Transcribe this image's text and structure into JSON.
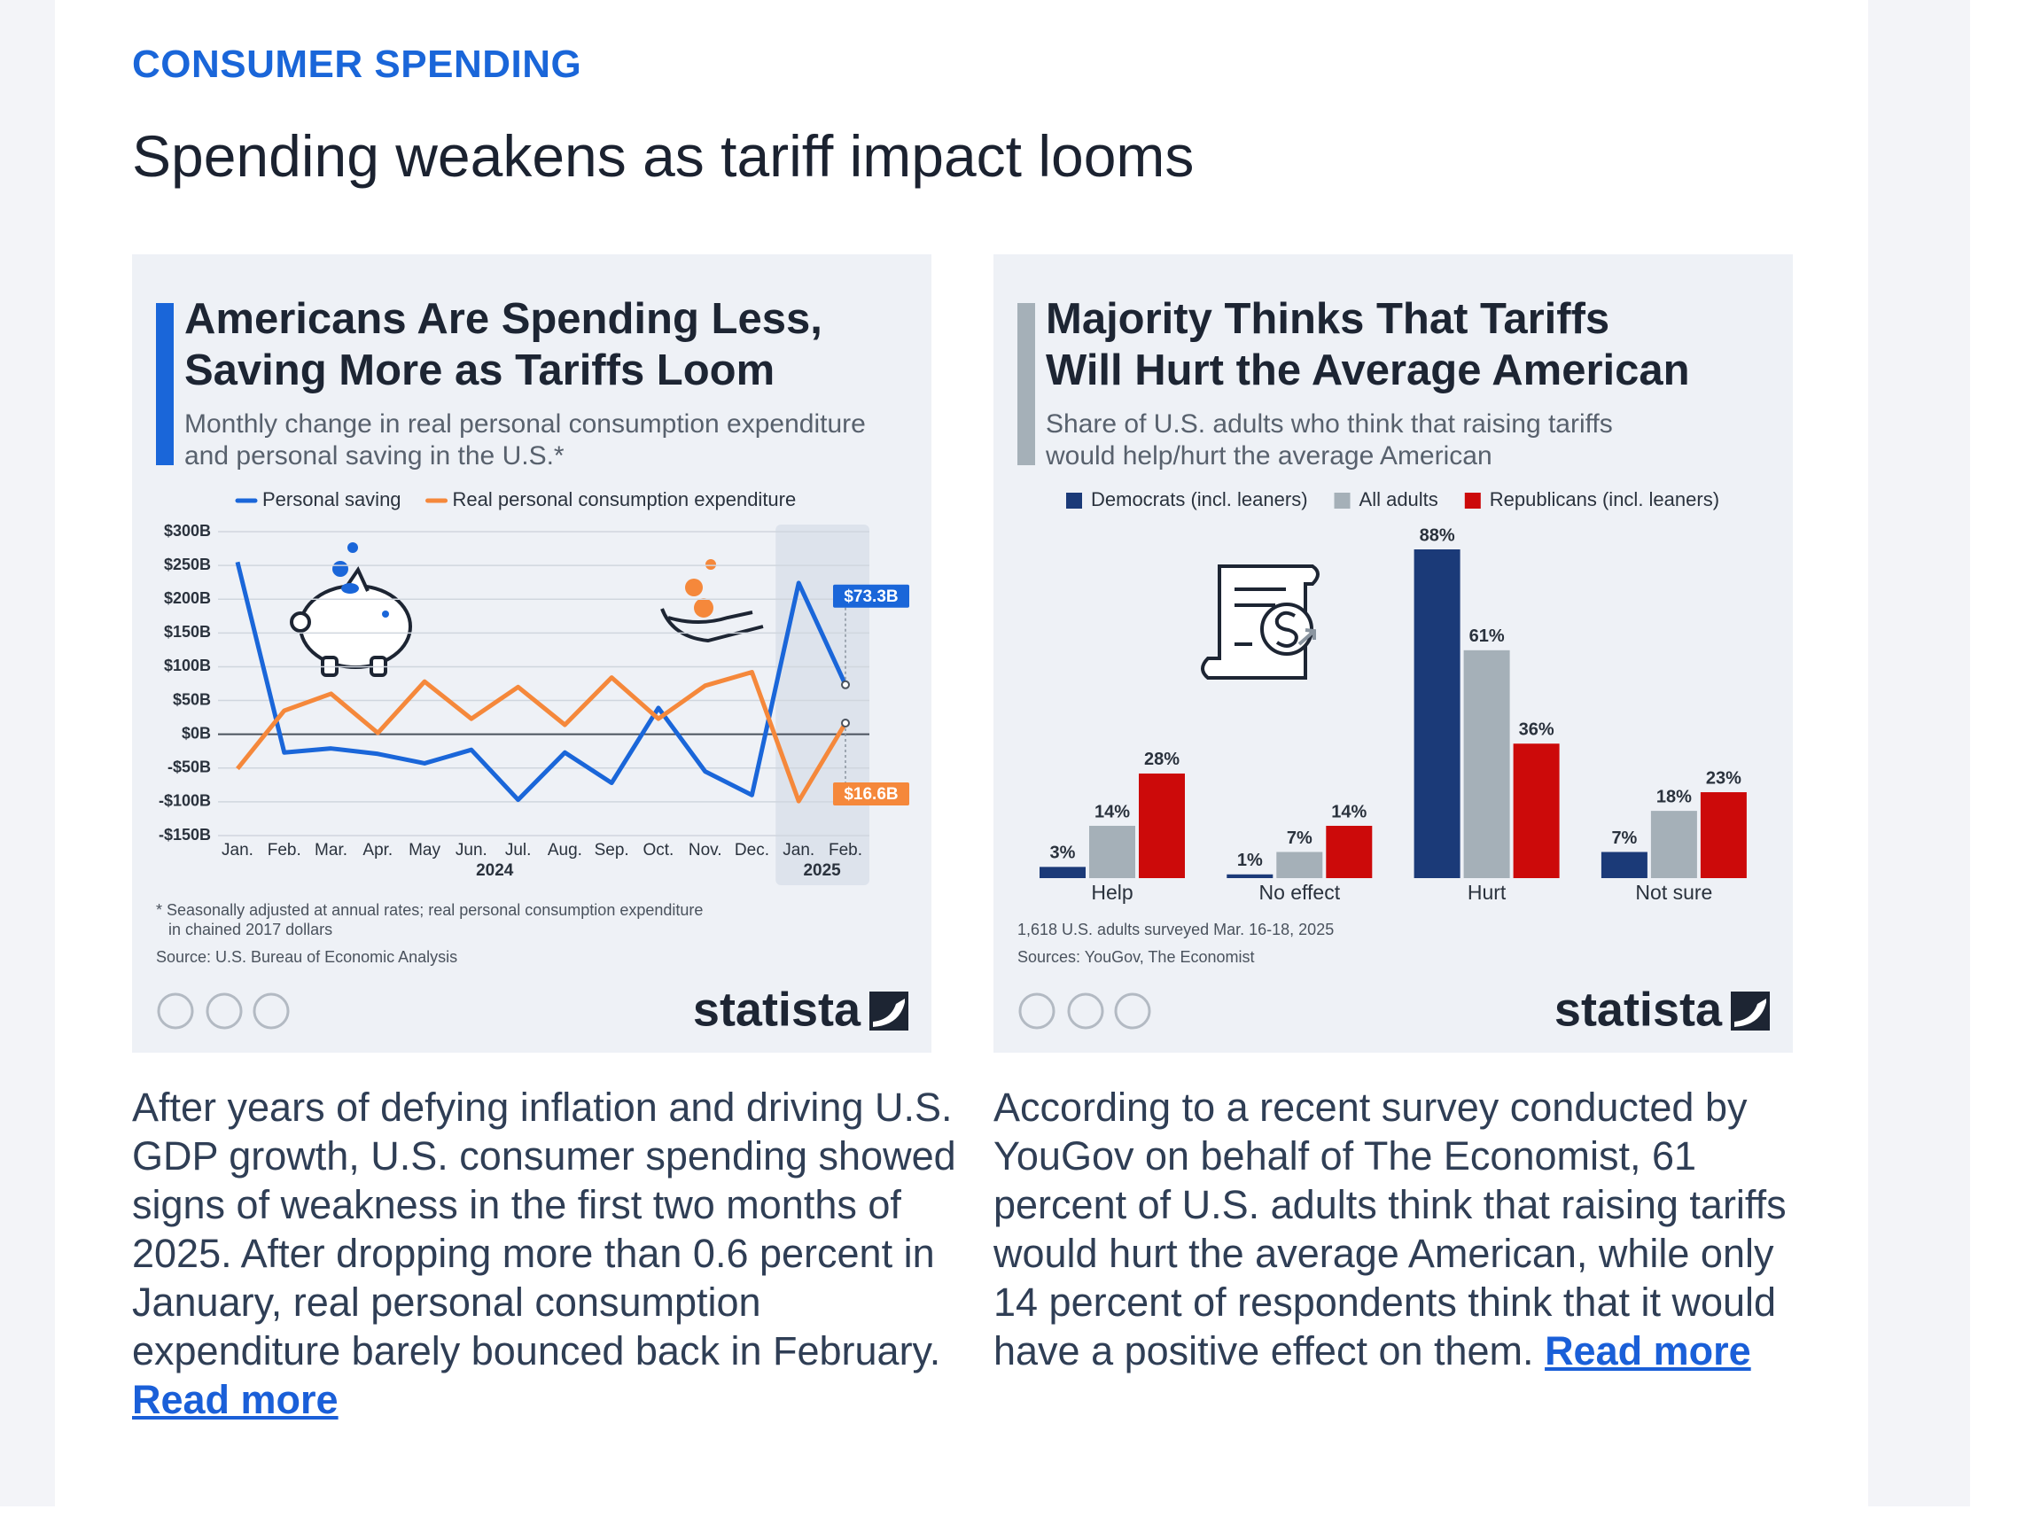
{
  "section_label": "CONSUMER SPENDING",
  "headline": "Spending weakens as tariff impact looms",
  "chart_data": [
    {
      "type": "line",
      "accent_color": "#1a66d9",
      "title": [
        "Americans Are Spending Less,",
        "Saving More as Tariffs Loom"
      ],
      "subtitle": [
        "Monthly change in real personal consumption expenditure",
        "and personal saving in the U.S.*"
      ],
      "categories": [
        "Jan.",
        "Feb.",
        "Mar.",
        "Apr.",
        "May",
        "Jun.",
        "Jul.",
        "Aug.",
        "Sep.",
        "Oct.",
        "Nov.",
        "Dec.",
        "Jan.",
        "Feb."
      ],
      "x_groups": [
        "2024",
        "2025"
      ],
      "series": [
        {
          "name": "Personal saving",
          "color": "#1a66d9",
          "values": [
            255,
            -27,
            -21,
            -29,
            -43,
            -23,
            -97,
            -27,
            -72,
            39,
            -55,
            -90,
            224,
            73.3
          ],
          "value_labels": [
            null,
            null,
            null,
            null,
            null,
            null,
            null,
            null,
            null,
            null,
            null,
            null,
            null,
            "$73.3B"
          ]
        },
        {
          "name": "Real personal consumption expenditure",
          "color": "#f5883b",
          "values": [
            -51,
            35,
            60,
            2,
            78,
            23,
            70,
            14,
            84,
            23,
            72,
            92,
            -99,
            16.6
          ],
          "value_labels": [
            null,
            null,
            null,
            null,
            null,
            null,
            null,
            null,
            null,
            null,
            null,
            null,
            null,
            "$16.6B"
          ]
        }
      ],
      "ylim": [
        -150,
        300
      ],
      "yticks": [
        {
          "value": -150,
          "label": "-$150B"
        },
        {
          "value": -100,
          "label": "-$100B"
        },
        {
          "value": -50,
          "label": "-$50B"
        },
        {
          "value": 0,
          "label": "$0B"
        },
        {
          "value": 50,
          "label": "$50B"
        },
        {
          "value": 100,
          "label": "$100B"
        },
        {
          "value": 150,
          "label": "$150B"
        },
        {
          "value": 200,
          "label": "$200B"
        },
        {
          "value": 250,
          "label": "$250B"
        },
        {
          "value": 300,
          "label": "$300B"
        }
      ],
      "grid": true,
      "footnote": [
        "* Seasonally adjusted at annual rates; real personal consumption expenditure",
        "in chained 2017 dollars"
      ],
      "source": "Source: U.S. Bureau of Economic Analysis",
      "brand": "statista"
    },
    {
      "type": "bar",
      "accent_color": "#a5b0b8",
      "title": [
        "Majority Thinks That Tariffs",
        "Will Hurt the Average American"
      ],
      "subtitle": [
        "Share of U.S. adults who think that raising tariffs",
        "would help/hurt the average American"
      ],
      "categories": [
        "Help",
        "No effect",
        "Hurt",
        "Not sure"
      ],
      "series": [
        {
          "name": "Democrats (incl. leaners)",
          "color": "#1b3a78",
          "values": [
            3,
            1,
            88,
            7
          ],
          "value_labels": [
            "3%",
            "1%",
            "88%",
            "7%"
          ]
        },
        {
          "name": "All adults",
          "color": "#a5b0b8",
          "values": [
            14,
            7,
            61,
            18
          ],
          "value_labels": [
            "14%",
            "7%",
            "61%",
            "18%"
          ]
        },
        {
          "name": "Republicans (incl. leaners)",
          "color": "#cc0a0a",
          "values": [
            28,
            14,
            36,
            23
          ],
          "value_labels": [
            "28%",
            "14%",
            "36%",
            "23%"
          ]
        }
      ],
      "footnote": [
        "1,618 U.S. adults surveyed Mar. 16-18, 2025"
      ],
      "source": "Sources: YouGov, The Economist",
      "brand": "statista"
    }
  ],
  "articles": [
    {
      "text": "After years of defying inflation and driving U.S. GDP growth, U.S. consumer spending showed signs of weakness in the first two months of 2025. After dropping more than 0.6 percent in January, real personal consumption expenditure barely bounced back in February.",
      "link": "Read more"
    },
    {
      "text": "According to a recent survey conducted by YouGov on behalf of The Economist, 61 percent of U.S. adults think that raising tariffs would hurt the average American, while only 14 percent of respondents think that it would have a positive effect on them.",
      "link": "Read more"
    }
  ]
}
